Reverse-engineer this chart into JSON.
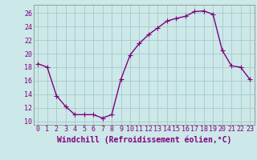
{
  "x": [
    0,
    1,
    2,
    3,
    4,
    5,
    6,
    7,
    8,
    9,
    10,
    11,
    12,
    13,
    14,
    15,
    16,
    17,
    18,
    19,
    20,
    21,
    22,
    23
  ],
  "y": [
    18.5,
    18.0,
    13.8,
    12.2,
    11.0,
    11.0,
    11.0,
    10.5,
    11.0,
    16.2,
    19.8,
    21.5,
    22.8,
    23.8,
    24.8,
    25.2,
    25.5,
    26.2,
    26.3,
    25.8,
    20.5,
    18.2,
    18.0,
    16.2
  ],
  "line_color": "#800080",
  "marker": "+",
  "marker_size": 4,
  "bg_color": "#cce8e8",
  "grid_color": "#aac8c8",
  "xlabel": "Windchill (Refroidissement éolien,°C)",
  "xlim": [
    -0.5,
    23.5
  ],
  "ylim": [
    9.5,
    27.2
  ],
  "yticks": [
    10,
    12,
    14,
    16,
    18,
    20,
    22,
    24,
    26
  ],
  "xticks": [
    0,
    1,
    2,
    3,
    4,
    5,
    6,
    7,
    8,
    9,
    10,
    11,
    12,
    13,
    14,
    15,
    16,
    17,
    18,
    19,
    20,
    21,
    22,
    23
  ],
  "tick_label_fontsize": 6,
  "xlabel_fontsize": 7,
  "line_width": 1.0
}
